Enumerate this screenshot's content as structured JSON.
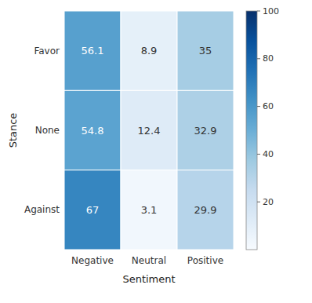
{
  "chart_data": {
    "type": "heatmap",
    "xlabel": "Sentiment",
    "ylabel": "Stance",
    "x_categories": [
      "Negative",
      "Neutral",
      "Positive"
    ],
    "y_categories": [
      "Favor",
      "None",
      "Against"
    ],
    "values": [
      [
        56.1,
        8.9,
        35.0
      ],
      [
        54.8,
        12.4,
        32.9
      ],
      [
        67.0,
        3.1,
        29.9
      ]
    ],
    "color": "Blues",
    "color_range": [
      0,
      100
    ],
    "color_ticks": [
      20,
      40,
      60,
      80,
      100
    ],
    "data_labels": true
  }
}
